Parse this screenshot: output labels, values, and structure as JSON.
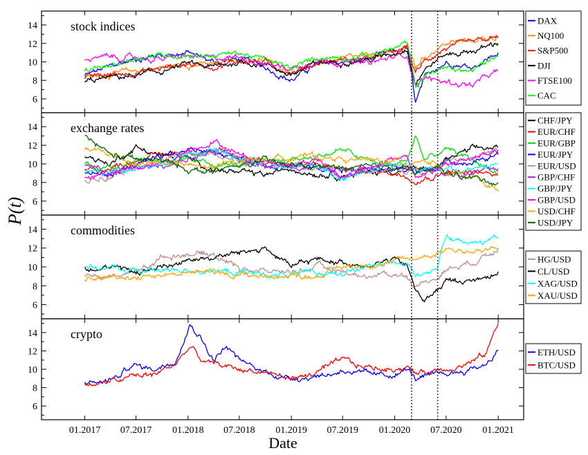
{
  "figure": {
    "ylabel": "P(t)",
    "xlabel": "Date",
    "x_ticks": [
      "01.2017",
      "07.2017",
      "01.2018",
      "07.2018",
      "01.2019",
      "07.2019",
      "01.2020",
      "07.2020",
      "01.2021"
    ],
    "vlines": [
      "2020-03-01",
      "2020-06-01"
    ]
  },
  "chart_data": [
    {
      "type": "line",
      "title": "stock indices",
      "ylim": [
        4.5,
        15.5
      ],
      "yticks": [
        6,
        8,
        10,
        12,
        14
      ],
      "x_range": [
        "2016-08-01",
        "2021-04-01"
      ],
      "legend_position": "right",
      "x": [
        "2017-01-01",
        "2017-04-01",
        "2017-07-01",
        "2017-10-01",
        "2018-01-01",
        "2018-04-01",
        "2018-07-01",
        "2018-10-01",
        "2019-01-01",
        "2019-04-01",
        "2019-07-01",
        "2019-10-01",
        "2020-01-01",
        "2020-02-15",
        "2020-03-15",
        "2020-04-15",
        "2020-06-01",
        "2020-07-01",
        "2020-10-01",
        "2021-01-01"
      ],
      "series": [
        {
          "name": "DAX",
          "color": "#0000ff",
          "values": [
            8.5,
            9.5,
            10.3,
            10.8,
            11.0,
            10.0,
            10.3,
            9.5,
            8.0,
            9.8,
            10.0,
            10.3,
            11.0,
            11.5,
            5.5,
            8.0,
            9.5,
            10.0,
            9.5,
            11.0
          ]
        },
        {
          "name": "NQ100",
          "color": "#ff8c00",
          "values": [
            8.3,
            8.7,
            9.0,
            9.4,
            9.8,
            9.7,
            10.3,
            10.2,
            9.0,
            9.9,
            10.3,
            10.5,
            11.0,
            11.6,
            9.5,
            10.5,
            11.5,
            12.0,
            12.3,
            12.8
          ]
        },
        {
          "name": "S&P500",
          "color": "#ff0000",
          "values": [
            8.2,
            8.6,
            8.9,
            9.3,
            9.8,
            9.5,
            10.1,
            10.0,
            8.8,
            9.9,
            10.2,
            10.4,
            11.0,
            11.6,
            8.8,
            10.0,
            11.0,
            11.5,
            12.0,
            12.6
          ]
        },
        {
          "name": "DJI",
          "color": "#000000",
          "values": [
            7.8,
            8.3,
            8.5,
            9.0,
            9.8,
            9.4,
            10.0,
            9.8,
            8.6,
            9.8,
            10.1,
            10.2,
            11.0,
            11.5,
            7.8,
            9.2,
            10.3,
            10.8,
            11.2,
            12.0
          ]
        },
        {
          "name": "FTSE100",
          "color": "#ff00ff",
          "values": [
            10.2,
            10.5,
            10.4,
            10.3,
            10.6,
            10.3,
            10.6,
            9.8,
            9.3,
            10.2,
            10.0,
            9.8,
            10.5,
            10.8,
            7.5,
            8.3,
            8.0,
            7.8,
            7.5,
            9.0
          ]
        },
        {
          "name": "CAC",
          "color": "#00ff00",
          "values": [
            9.0,
            9.6,
            10.5,
            10.7,
            10.8,
            10.7,
            11.0,
            10.2,
            9.2,
            10.5,
            10.5,
            10.7,
            11.5,
            12.0,
            7.0,
            8.5,
            9.2,
            9.3,
            9.0,
            10.8
          ]
        }
      ]
    },
    {
      "type": "line",
      "title": "exchange rates",
      "ylim": [
        4.5,
        15.5
      ],
      "yticks": [
        6,
        8,
        10,
        12,
        14
      ],
      "x_range": [
        "2016-08-01",
        "2021-04-01"
      ],
      "legend_position": "right",
      "x": [
        "2017-01-01",
        "2017-04-01",
        "2017-07-01",
        "2017-10-01",
        "2018-01-01",
        "2018-04-01",
        "2018-07-01",
        "2018-10-01",
        "2019-01-01",
        "2019-04-01",
        "2019-07-01",
        "2019-10-01",
        "2020-01-01",
        "2020-02-15",
        "2020-03-15",
        "2020-04-15",
        "2020-06-01",
        "2020-07-01",
        "2020-10-01",
        "2021-01-01"
      ],
      "series": [
        {
          "name": "CHF/JPY",
          "color": "#000000",
          "values": [
            10.8,
            10.0,
            11.8,
            10.9,
            10.5,
            9.5,
            9.0,
            8.8,
            9.5,
            9.0,
            8.8,
            9.0,
            9.3,
            9.2,
            9.5,
            9.3,
            9.6,
            10.5,
            11.5,
            11.8
          ]
        },
        {
          "name": "EUR/CHF",
          "color": "#ff0000",
          "values": [
            9.3,
            9.5,
            10.5,
            11.0,
            11.5,
            11.3,
            10.8,
            10.2,
            10.0,
            9.8,
            9.5,
            9.3,
            9.0,
            8.8,
            8.3,
            8.5,
            8.8,
            9.3,
            9.0,
            8.8
          ]
        },
        {
          "name": "EUR/GBP",
          "color": "#00dd00",
          "values": [
            10.0,
            9.5,
            10.5,
            10.3,
            10.2,
            10.0,
            9.9,
            10.3,
            10.5,
            10.8,
            11.5,
            10.3,
            9.8,
            10.5,
            13.0,
            10.5,
            11.0,
            11.5,
            10.5,
            9.0
          ]
        },
        {
          "name": "EUR/JPY",
          "color": "#0000ff",
          "values": [
            9.0,
            8.8,
            10.0,
            10.5,
            11.5,
            11.5,
            10.5,
            10.0,
            9.8,
            9.5,
            9.3,
            9.3,
            9.5,
            9.5,
            9.3,
            9.0,
            9.5,
            10.5,
            10.0,
            11.0
          ]
        },
        {
          "name": "EUR/USD",
          "color": "#bc8f8f",
          "values": [
            8.3,
            8.8,
            10.0,
            10.5,
            11.0,
            11.0,
            10.3,
            10.0,
            9.8,
            9.5,
            9.3,
            9.3,
            9.3,
            9.0,
            9.5,
            9.3,
            9.8,
            10.5,
            10.8,
            11.5
          ]
        },
        {
          "name": "GBP/CHF",
          "color": "#a020f0",
          "values": [
            9.8,
            9.0,
            9.5,
            9.8,
            10.5,
            11.2,
            10.5,
            10.0,
            9.8,
            9.8,
            8.5,
            9.5,
            10.0,
            10.0,
            9.0,
            9.5,
            9.5,
            9.0,
            9.0,
            9.5
          ]
        },
        {
          "name": "GBP/JPY",
          "color": "#00ffff",
          "values": [
            9.2,
            9.0,
            9.8,
            10.0,
            11.0,
            11.5,
            10.5,
            10.0,
            9.5,
            10.0,
            8.5,
            9.5,
            10.0,
            10.3,
            8.8,
            9.5,
            9.5,
            9.5,
            9.3,
            10.0
          ]
        },
        {
          "name": "GBP/USD",
          "color": "#ff00ff",
          "values": [
            8.5,
            9.0,
            9.5,
            10.0,
            11.5,
            12.5,
            11.0,
            10.3,
            10.0,
            10.5,
            8.5,
            9.8,
            10.5,
            10.5,
            8.5,
            9.0,
            9.5,
            10.0,
            10.5,
            11.5
          ]
        },
        {
          "name": "USD/CHF",
          "color": "#ffa500",
          "values": [
            11.5,
            11.0,
            10.0,
            10.2,
            9.8,
            9.5,
            10.5,
            10.5,
            10.8,
            10.8,
            10.5,
            10.3,
            10.3,
            10.0,
            10.5,
            10.5,
            10.0,
            9.0,
            8.5,
            7.0
          ]
        },
        {
          "name": "USD/JPY",
          "color": "#006400",
          "values": [
            13.0,
            11.0,
            10.5,
            10.3,
            9.5,
            9.0,
            9.8,
            10.3,
            9.8,
            9.8,
            9.5,
            9.5,
            9.8,
            9.8,
            9.0,
            9.3,
            9.5,
            9.0,
            8.5,
            8.0
          ]
        }
      ]
    },
    {
      "type": "line",
      "title": "commodities",
      "ylim": [
        4.5,
        15.5
      ],
      "yticks": [
        6,
        8,
        10,
        12,
        14
      ],
      "x_range": [
        "2016-08-01",
        "2021-04-01"
      ],
      "legend_position": "right",
      "x": [
        "2017-01-01",
        "2017-04-01",
        "2017-07-01",
        "2017-10-01",
        "2018-01-01",
        "2018-04-01",
        "2018-07-01",
        "2018-10-01",
        "2019-01-01",
        "2019-04-01",
        "2019-07-01",
        "2019-10-01",
        "2020-01-01",
        "2020-02-15",
        "2020-03-15",
        "2020-04-15",
        "2020-06-01",
        "2020-07-01",
        "2020-10-01",
        "2021-01-01"
      ],
      "series": [
        {
          "name": "HG/USD",
          "color": "#bc8f8f",
          "values": [
            9.0,
            9.0,
            9.5,
            11.0,
            11.5,
            11.3,
            10.0,
            9.5,
            9.5,
            10.0,
            9.5,
            9.0,
            9.3,
            9.0,
            8.0,
            8.3,
            9.0,
            9.8,
            10.5,
            12.0
          ]
        },
        {
          "name": "CL/USD",
          "color": "#000000",
          "values": [
            10.0,
            9.8,
            9.5,
            10.0,
            10.8,
            11.0,
            11.5,
            12.0,
            10.0,
            10.8,
            10.5,
            10.2,
            10.8,
            10.0,
            7.5,
            6.5,
            7.5,
            8.5,
            8.5,
            9.5
          ]
        },
        {
          "name": "XAG/USD",
          "color": "#00ffff",
          "values": [
            10.0,
            9.8,
            9.6,
            9.6,
            9.8,
            9.5,
            9.4,
            9.2,
            9.2,
            9.2,
            9.5,
            10.0,
            10.3,
            10.3,
            9.0,
            9.5,
            10.0,
            13.5,
            12.5,
            13.0
          ]
        },
        {
          "name": "XAU/USD",
          "color": "#ffa500",
          "values": [
            8.6,
            8.9,
            9.0,
            9.2,
            9.4,
            9.4,
            9.2,
            9.0,
            9.1,
            9.1,
            10.0,
            10.3,
            10.5,
            10.8,
            10.8,
            11.2,
            11.5,
            12.0,
            11.6,
            11.8
          ]
        }
      ]
    },
    {
      "type": "line",
      "title": "crypto",
      "ylim": [
        4.5,
        15.5
      ],
      "yticks": [
        6,
        8,
        10,
        12,
        14
      ],
      "x_range": [
        "2016-08-01",
        "2021-04-01"
      ],
      "legend_position": "right",
      "x": [
        "2017-01-01",
        "2017-03-01",
        "2017-05-01",
        "2017-06-15",
        "2017-09-01",
        "2017-11-15",
        "2018-01-10",
        "2018-02-15",
        "2018-04-01",
        "2018-05-15",
        "2018-07-01",
        "2018-09-01",
        "2018-11-01",
        "2018-12-15",
        "2019-03-01",
        "2019-06-01",
        "2019-07-01",
        "2019-09-01",
        "2019-12-01",
        "2020-02-15",
        "2020-03-15",
        "2020-06-01",
        "2020-09-01",
        "2020-11-15",
        "2021-01-01"
      ],
      "series": [
        {
          "name": "ETH/USD",
          "color": "#0000ff",
          "values": [
            8.6,
            8.6,
            9.2,
            10.5,
            10.0,
            11.0,
            15.0,
            13.5,
            11.0,
            12.5,
            11.0,
            10.0,
            9.5,
            9.0,
            9.2,
            9.5,
            10.0,
            9.5,
            9.2,
            10.0,
            9.0,
            9.3,
            9.8,
            10.5,
            12.0
          ]
        },
        {
          "name": "BTC/USD",
          "color": "#ff0000",
          "values": [
            8.5,
            8.4,
            8.8,
            9.2,
            9.4,
            10.5,
            12.5,
            11.0,
            10.5,
            10.3,
            10.0,
            9.8,
            9.5,
            9.0,
            9.3,
            10.5,
            11.0,
            10.3,
            10.0,
            10.3,
            9.5,
            10.0,
            10.5,
            11.5,
            15.0
          ]
        }
      ]
    }
  ]
}
